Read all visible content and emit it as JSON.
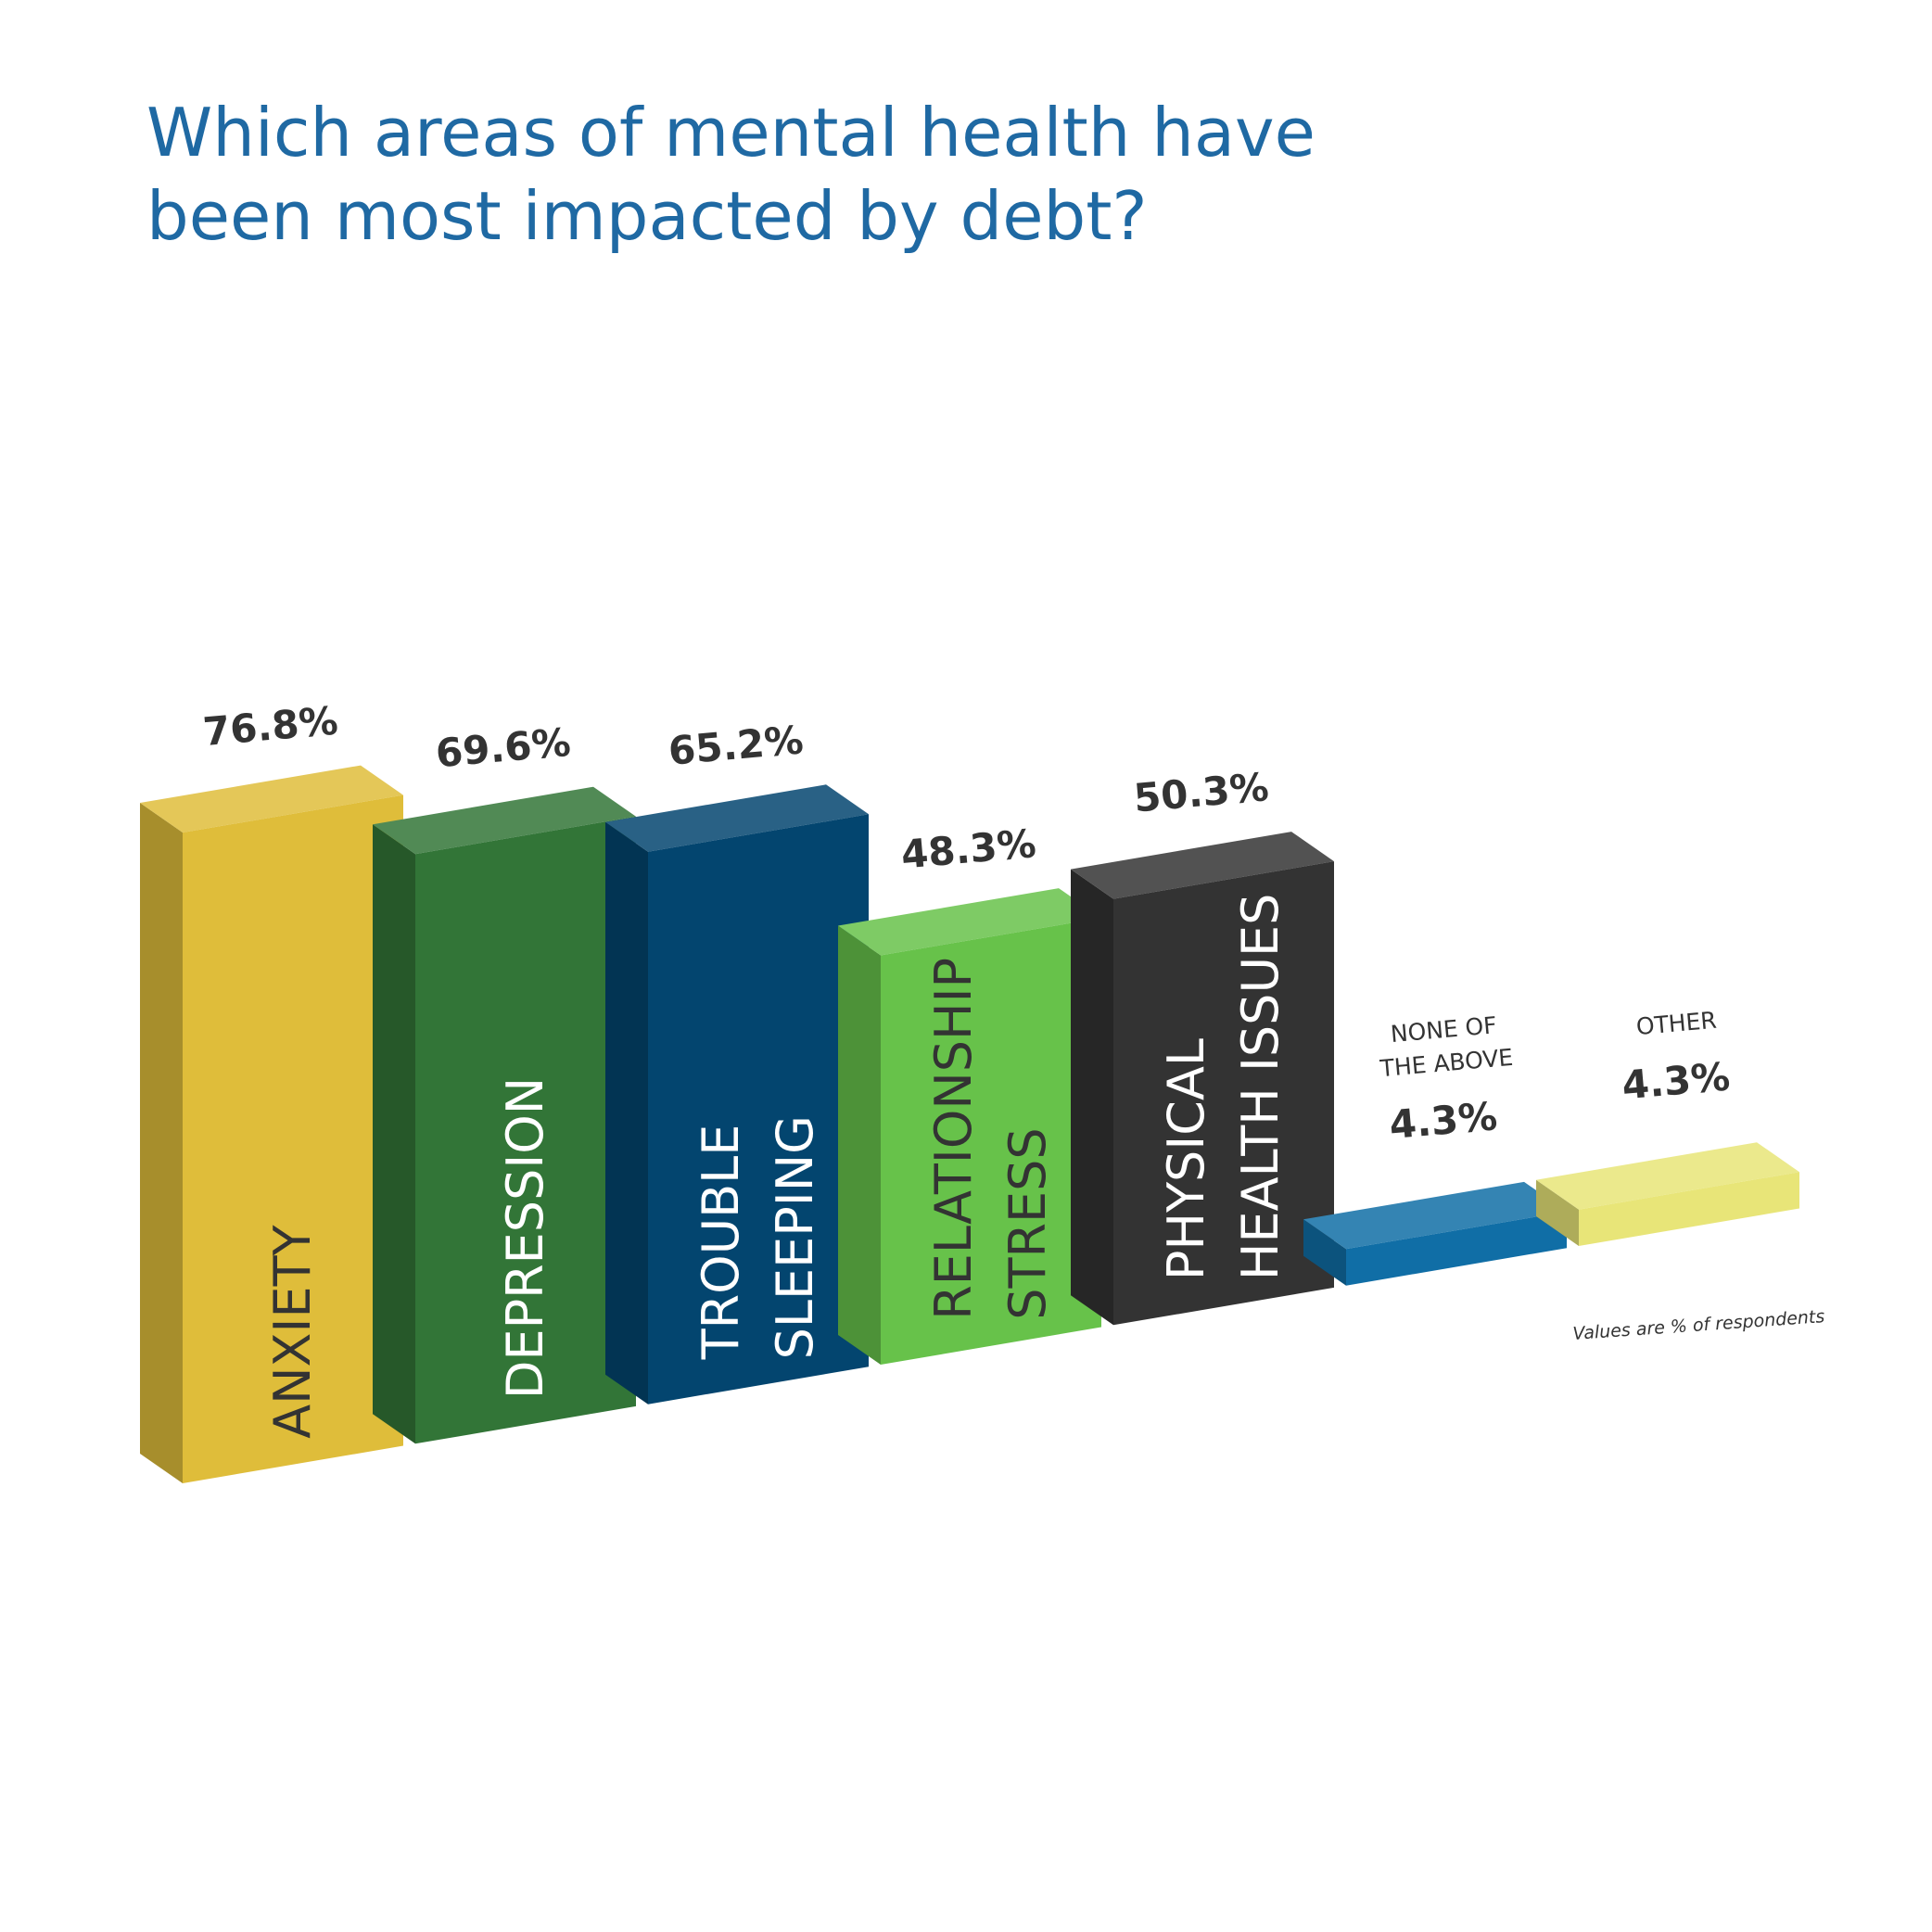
{
  "chart_data": {
    "type": "bar",
    "title": "Which areas of mental health have been most impacted by debt?",
    "title_lines": [
      "Which areas of mental health have",
      "been most impacted by debt?"
    ],
    "categories": [
      "ANXIETY",
      "DEPRESSION",
      "TROUBLE SLEEPING",
      "RELATIONSHIP STRESS",
      "PHYSICAL HEALTH ISSUES",
      "NONE OF THE ABOVE",
      "OTHER"
    ],
    "category_lines": [
      [
        "ANXIETY"
      ],
      [
        "DEPRESSION"
      ],
      [
        "TROUBLE",
        "SLEEPING"
      ],
      [
        "RELATIONSHIP",
        "STRESS"
      ],
      [
        "PHYSICAL",
        "HEALTH ISSUES"
      ],
      [
        "NONE OF",
        "THE ABOVE"
      ],
      [
        "OTHER"
      ]
    ],
    "values": [
      76.8,
      69.6,
      65.2,
      48.3,
      50.3,
      4.3,
      4.3
    ],
    "value_labels": [
      "76.8%",
      "69.6%",
      "65.2%",
      "48.3%",
      "50.3%",
      "4.3%",
      "4.3%"
    ],
    "unit": "%",
    "note": "Values are % of respondents",
    "colors": [
      "#dfbd3a",
      "#327537",
      "#03456f",
      "#67c24a",
      "#333333",
      "#106ea6",
      "#e8e578"
    ],
    "label_colors": [
      "#333333",
      "#ffffff",
      "#ffffff",
      "#333333",
      "#ffffff",
      "#333333",
      "#333333"
    ],
    "style": "3d-isometric",
    "legend": "none",
    "grid": false
  }
}
